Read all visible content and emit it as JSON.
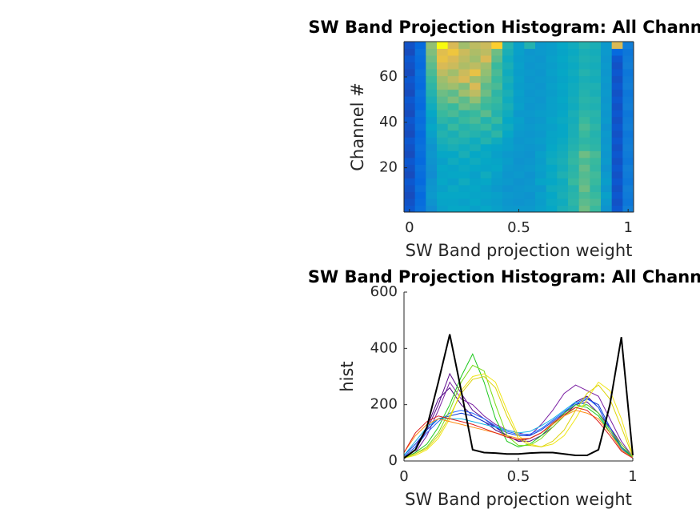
{
  "chart_data": [
    {
      "type": "heatmap",
      "title": "SW Band Projection Histogram: All Channels",
      "xlabel": "SW Band projection weight",
      "ylabel": "Channel #",
      "xlim": [
        -0.025,
        1.025
      ],
      "xticks": [
        0,
        0.5,
        1
      ],
      "ylim": [
        0.5,
        75.5
      ],
      "yticks": [
        20,
        40,
        60
      ],
      "clim": [
        0,
        400
      ],
      "colormap": [
        "#352a87",
        "#0363e1",
        "#1485d4",
        "#06a7c6",
        "#38b99e",
        "#92bf73",
        "#d9ba56",
        "#fcce2e",
        "#f9fb0e"
      ],
      "x": [
        0,
        0.05,
        0.1,
        0.15,
        0.2,
        0.25,
        0.3,
        0.35,
        0.4,
        0.45,
        0.5,
        0.55,
        0.6,
        0.65,
        0.7,
        0.75,
        0.8,
        0.85,
        0.9,
        0.95,
        1
      ],
      "values": [
        [
          40,
          70,
          110,
          140,
          150,
          150,
          140,
          150,
          140,
          130,
          130,
          130,
          140,
          150,
          170,
          180,
          230,
          200,
          120,
          40,
          90
        ],
        [
          35,
          65,
          120,
          145,
          145,
          140,
          150,
          140,
          135,
          125,
          120,
          125,
          135,
          155,
          160,
          190,
          220,
          210,
          130,
          35,
          80
        ],
        [
          30,
          60,
          130,
          150,
          150,
          150,
          145,
          145,
          140,
          130,
          125,
          120,
          140,
          150,
          170,
          185,
          210,
          200,
          140,
          40,
          85
        ],
        [
          35,
          70,
          125,
          140,
          155,
          145,
          150,
          140,
          130,
          120,
          125,
          130,
          130,
          160,
          165,
          180,
          230,
          190,
          125,
          35,
          90
        ],
        [
          40,
          60,
          120,
          150,
          140,
          160,
          145,
          150,
          135,
          130,
          120,
          125,
          145,
          150,
          160,
          200,
          220,
          200,
          135,
          40,
          80
        ],
        [
          30,
          65,
          110,
          145,
          150,
          150,
          140,
          160,
          140,
          125,
          130,
          120,
          135,
          155,
          175,
          190,
          215,
          205,
          130,
          35,
          85
        ],
        [
          35,
          70,
          115,
          150,
          145,
          155,
          150,
          145,
          150,
          130,
          125,
          130,
          140,
          150,
          165,
          185,
          225,
          195,
          120,
          40,
          90
        ],
        [
          40,
          60,
          120,
          140,
          160,
          150,
          160,
          150,
          145,
          135,
          120,
          125,
          135,
          160,
          170,
          195,
          210,
          200,
          130,
          35,
          80
        ],
        [
          30,
          65,
          125,
          150,
          150,
          170,
          150,
          155,
          140,
          130,
          125,
          120,
          140,
          155,
          165,
          190,
          230,
          210,
          125,
          40,
          85
        ],
        [
          35,
          70,
          120,
          160,
          170,
          160,
          170,
          150,
          145,
          140,
          130,
          125,
          130,
          150,
          160,
          180,
          200,
          190,
          130,
          35,
          90
        ],
        [
          40,
          65,
          130,
          170,
          180,
          175,
          160,
          180,
          160,
          140,
          125,
          130,
          135,
          145,
          155,
          175,
          190,
          185,
          125,
          40,
          85
        ],
        [
          30,
          60,
          140,
          180,
          170,
          190,
          180,
          170,
          190,
          150,
          130,
          125,
          130,
          145,
          150,
          170,
          200,
          180,
          130,
          35,
          80
        ],
        [
          35,
          70,
          150,
          170,
          200,
          180,
          190,
          200,
          170,
          160,
          135,
          130,
          135,
          140,
          150,
          170,
          210,
          190,
          120,
          40,
          90
        ],
        [
          40,
          65,
          140,
          190,
          180,
          200,
          210,
          180,
          200,
          150,
          140,
          125,
          130,
          145,
          155,
          165,
          200,
          180,
          130,
          35,
          85
        ],
        [
          30,
          70,
          150,
          200,
          210,
          190,
          200,
          220,
          180,
          160,
          130,
          130,
          135,
          140,
          150,
          170,
          190,
          185,
          125,
          40,
          80
        ],
        [
          35,
          60,
          160,
          210,
          200,
          230,
          220,
          200,
          190,
          170,
          140,
          125,
          130,
          140,
          145,
          160,
          180,
          175,
          130,
          35,
          90
        ],
        [
          40,
          65,
          170,
          220,
          240,
          220,
          250,
          210,
          200,
          160,
          135,
          130,
          125,
          140,
          150,
          165,
          185,
          180,
          125,
          40,
          85
        ],
        [
          30,
          70,
          180,
          230,
          220,
          260,
          280,
          230,
          190,
          170,
          140,
          125,
          130,
          135,
          145,
          160,
          180,
          170,
          130,
          35,
          80
        ],
        [
          35,
          60,
          190,
          250,
          260,
          240,
          300,
          220,
          210,
          160,
          135,
          130,
          125,
          140,
          150,
          160,
          175,
          175,
          125,
          40,
          90
        ],
        [
          40,
          65,
          200,
          260,
          280,
          300,
          260,
          240,
          200,
          170,
          140,
          125,
          130,
          135,
          145,
          155,
          170,
          165,
          130,
          35,
          85
        ],
        [
          30,
          70,
          210,
          280,
          260,
          290,
          320,
          250,
          210,
          160,
          135,
          130,
          125,
          140,
          150,
          160,
          180,
          170,
          125,
          40,
          80
        ],
        [
          35,
          60,
          220,
          300,
          290,
          270,
          280,
          260,
          200,
          170,
          140,
          125,
          130,
          135,
          145,
          155,
          170,
          165,
          130,
          35,
          90
        ],
        [
          40,
          65,
          230,
          320,
          300,
          280,
          260,
          300,
          220,
          160,
          135,
          130,
          125,
          140,
          150,
          160,
          175,
          170,
          125,
          40,
          85
        ],
        [
          30,
          70,
          240,
          310,
          330,
          290,
          270,
          280,
          230,
          170,
          140,
          125,
          130,
          135,
          145,
          155,
          170,
          165,
          130,
          60,
          80
        ],
        [
          35,
          60,
          250,
          400,
          300,
          260,
          280,
          290,
          350,
          180,
          140,
          180,
          130,
          135,
          150,
          160,
          180,
          170,
          130,
          300,
          90
        ]
      ]
    },
    {
      "type": "line",
      "title": "SW Band Projection Histogram: All Channels",
      "xlabel": "SW Band projection weight",
      "ylabel": "hist",
      "xlim": [
        0,
        1
      ],
      "xticks": [
        0,
        0.5,
        1
      ],
      "ylim": [
        0,
        600
      ],
      "yticks": [
        0,
        200,
        400,
        600
      ],
      "x": [
        0,
        0.05,
        0.1,
        0.15,
        0.2,
        0.25,
        0.3,
        0.35,
        0.4,
        0.45,
        0.5,
        0.55,
        0.6,
        0.65,
        0.7,
        0.75,
        0.8,
        0.85,
        0.9,
        0.95,
        1
      ],
      "series": [
        {
          "color": "#5a0a8c",
          "values": [
            10,
            40,
            110,
            200,
            310,
            240,
            180,
            150,
            120,
            90,
            70,
            70,
            90,
            120,
            160,
            200,
            210,
            170,
            120,
            60,
            15
          ]
        },
        {
          "color": "#7a1fa2",
          "values": [
            10,
            30,
            90,
            180,
            280,
            220,
            200,
            160,
            130,
            110,
            100,
            90,
            130,
            180,
            240,
            270,
            250,
            230,
            150,
            70,
            15
          ]
        },
        {
          "color": "#4b0082",
          "values": [
            15,
            50,
            120,
            220,
            260,
            200,
            160,
            140,
            110,
            90,
            70,
            80,
            100,
            130,
            170,
            210,
            230,
            190,
            110,
            50,
            10
          ]
        },
        {
          "color": "#0a3cd6",
          "values": [
            20,
            60,
            110,
            150,
            160,
            170,
            160,
            140,
            120,
            100,
            90,
            90,
            110,
            140,
            170,
            200,
            220,
            200,
            120,
            50,
            15
          ]
        },
        {
          "color": "#1e64ff",
          "values": [
            15,
            50,
            100,
            140,
            170,
            180,
            170,
            150,
            125,
            105,
            95,
            95,
            115,
            145,
            175,
            205,
            225,
            190,
            110,
            45,
            10
          ]
        },
        {
          "color": "#14b4e6",
          "values": [
            20,
            70,
            120,
            150,
            150,
            150,
            140,
            130,
            120,
            110,
            100,
            105,
            125,
            150,
            180,
            210,
            200,
            170,
            100,
            40,
            10
          ]
        },
        {
          "color": "#1ec81e",
          "values": [
            10,
            30,
            60,
            120,
            200,
            300,
            380,
            280,
            150,
            70,
            50,
            60,
            90,
            130,
            170,
            200,
            190,
            160,
            100,
            50,
            10
          ]
        },
        {
          "color": "#78dc14",
          "values": [
            10,
            25,
            50,
            100,
            180,
            280,
            340,
            320,
            200,
            90,
            55,
            55,
            80,
            120,
            160,
            190,
            200,
            170,
            110,
            60,
            15
          ]
        },
        {
          "color": "#f0e614",
          "values": [
            10,
            20,
            40,
            80,
            150,
            250,
            300,
            310,
            280,
            180,
            90,
            60,
            50,
            60,
            90,
            150,
            220,
            280,
            250,
            150,
            20
          ]
        },
        {
          "color": "#dcd20a",
          "values": [
            15,
            25,
            45,
            90,
            160,
            240,
            290,
            300,
            260,
            160,
            80,
            55,
            50,
            70,
            110,
            180,
            240,
            270,
            220,
            120,
            15
          ]
        },
        {
          "color": "#ff8c14",
          "values": [
            30,
            90,
            130,
            150,
            140,
            130,
            120,
            110,
            100,
            90,
            80,
            80,
            100,
            130,
            160,
            180,
            170,
            150,
            100,
            40,
            10
          ]
        },
        {
          "color": "#dc1e1e",
          "values": [
            30,
            100,
            140,
            160,
            150,
            140,
            130,
            115,
            100,
            85,
            75,
            80,
            100,
            135,
            165,
            190,
            180,
            140,
            90,
            35,
            10
          ]
        },
        {
          "color": "#000000",
          "values": [
            10,
            40,
            120,
            280,
            450,
            250,
            40,
            30,
            28,
            25,
            25,
            28,
            30,
            30,
            25,
            20,
            20,
            40,
            200,
            440,
            20
          ]
        }
      ]
    }
  ]
}
